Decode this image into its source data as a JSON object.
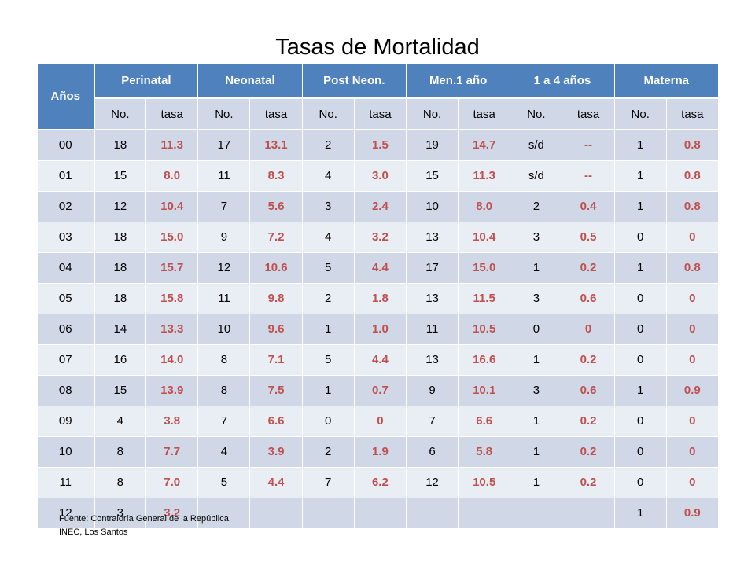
{
  "title": "Tasas de Mortalidad",
  "table": {
    "year_header": "Años",
    "groups": [
      "Perinatal",
      "Neonatal",
      "Post Neon.",
      "Men.1 año",
      "1 a 4 años",
      "Materna"
    ],
    "sub_no": "No.",
    "sub_tasa": "tasa",
    "rows": [
      {
        "year": "00",
        "cells": [
          "18",
          "11.3",
          "17",
          "13.1",
          "2",
          "1.5",
          "19",
          "14.7",
          "s/d",
          "--",
          "1",
          "0.8"
        ]
      },
      {
        "year": "01",
        "cells": [
          "15",
          "8.0",
          "11",
          "8.3",
          "4",
          "3.0",
          "15",
          "11.3",
          "s/d",
          "--",
          "1",
          "0.8"
        ]
      },
      {
        "year": "02",
        "cells": [
          "12",
          "10.4",
          "7",
          "5.6",
          "3",
          "2.4",
          "10",
          "8.0",
          "2",
          "0.4",
          "1",
          "0.8"
        ]
      },
      {
        "year": "03",
        "cells": [
          "18",
          "15.0",
          "9",
          "7.2",
          "4",
          "3.2",
          "13",
          "10.4",
          "3",
          "0.5",
          "0",
          "0"
        ]
      },
      {
        "year": "04",
        "cells": [
          "18",
          "15.7",
          "12",
          "10.6",
          "5",
          "4.4",
          "17",
          "15.0",
          "1",
          "0.2",
          "1",
          "0.8"
        ]
      },
      {
        "year": "05",
        "cells": [
          "18",
          "15.8",
          "11",
          "9.8",
          "2",
          "1.8",
          "13",
          "11.5",
          "3",
          "0.6",
          "0",
          "0"
        ]
      },
      {
        "year": "06",
        "cells": [
          "14",
          "13.3",
          "10",
          "9.6",
          "1",
          "1.0",
          "11",
          "10.5",
          "0",
          "0",
          "0",
          "0"
        ]
      },
      {
        "year": "07",
        "cells": [
          "16",
          "14.0",
          "8",
          "7.1",
          "5",
          "4.4",
          "13",
          "16.6",
          "1",
          "0.2",
          "0",
          "0"
        ]
      },
      {
        "year": "08",
        "cells": [
          "15",
          "13.9",
          "8",
          "7.5",
          "1",
          "0.7",
          "9",
          "10.1",
          "3",
          "0.6",
          "1",
          "0.9"
        ]
      },
      {
        "year": "09",
        "cells": [
          "4",
          "3.8",
          "7",
          "6.6",
          "0",
          "0",
          "7",
          "6.6",
          "1",
          "0.2",
          "0",
          "0"
        ]
      },
      {
        "year": "10",
        "cells": [
          "8",
          "7.7",
          "4",
          "3.9",
          "2",
          "1.9",
          "6",
          "5.8",
          "1",
          "0.2",
          "0",
          "0"
        ]
      },
      {
        "year": "11",
        "cells": [
          "8",
          "7.0",
          "5",
          "4.4",
          "7",
          "6.2",
          "12",
          "10.5",
          "1",
          "0.2",
          "0",
          "0"
        ]
      },
      {
        "year": "12",
        "cells": [
          "3",
          "3.2",
          "",
          "",
          "",
          "",
          "",
          "",
          "",
          "",
          "1",
          "0.9"
        ]
      }
    ]
  },
  "footer": {
    "line1": "Fuente:  Contraloría General de la República.",
    "line2": "INEC, Los Santos"
  }
}
